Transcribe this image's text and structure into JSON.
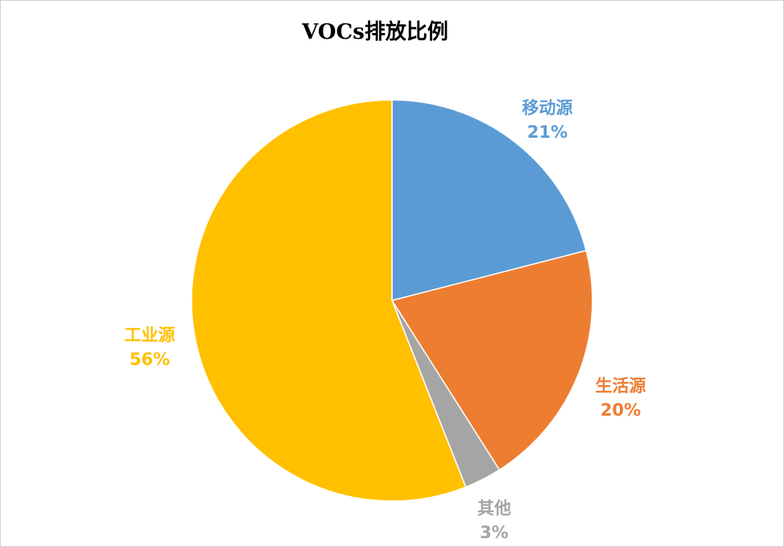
{
  "chart_data": {
    "type": "pie",
    "title": "VOCs排放比例",
    "start_angle": "12 o'clock, clockwise",
    "slices": [
      {
        "label": "移动源",
        "value": 21,
        "display": "21%",
        "color": "#5B9BD5"
      },
      {
        "label": "生活源",
        "value": 20,
        "display": "20%",
        "color": "#ED7D31"
      },
      {
        "label": "其他",
        "value": 3,
        "display": "3%",
        "color": "#A5A5A5"
      },
      {
        "label": "工业源",
        "value": 56,
        "display": "56%",
        "color": "#FFC000"
      }
    ],
    "legend": "none"
  }
}
